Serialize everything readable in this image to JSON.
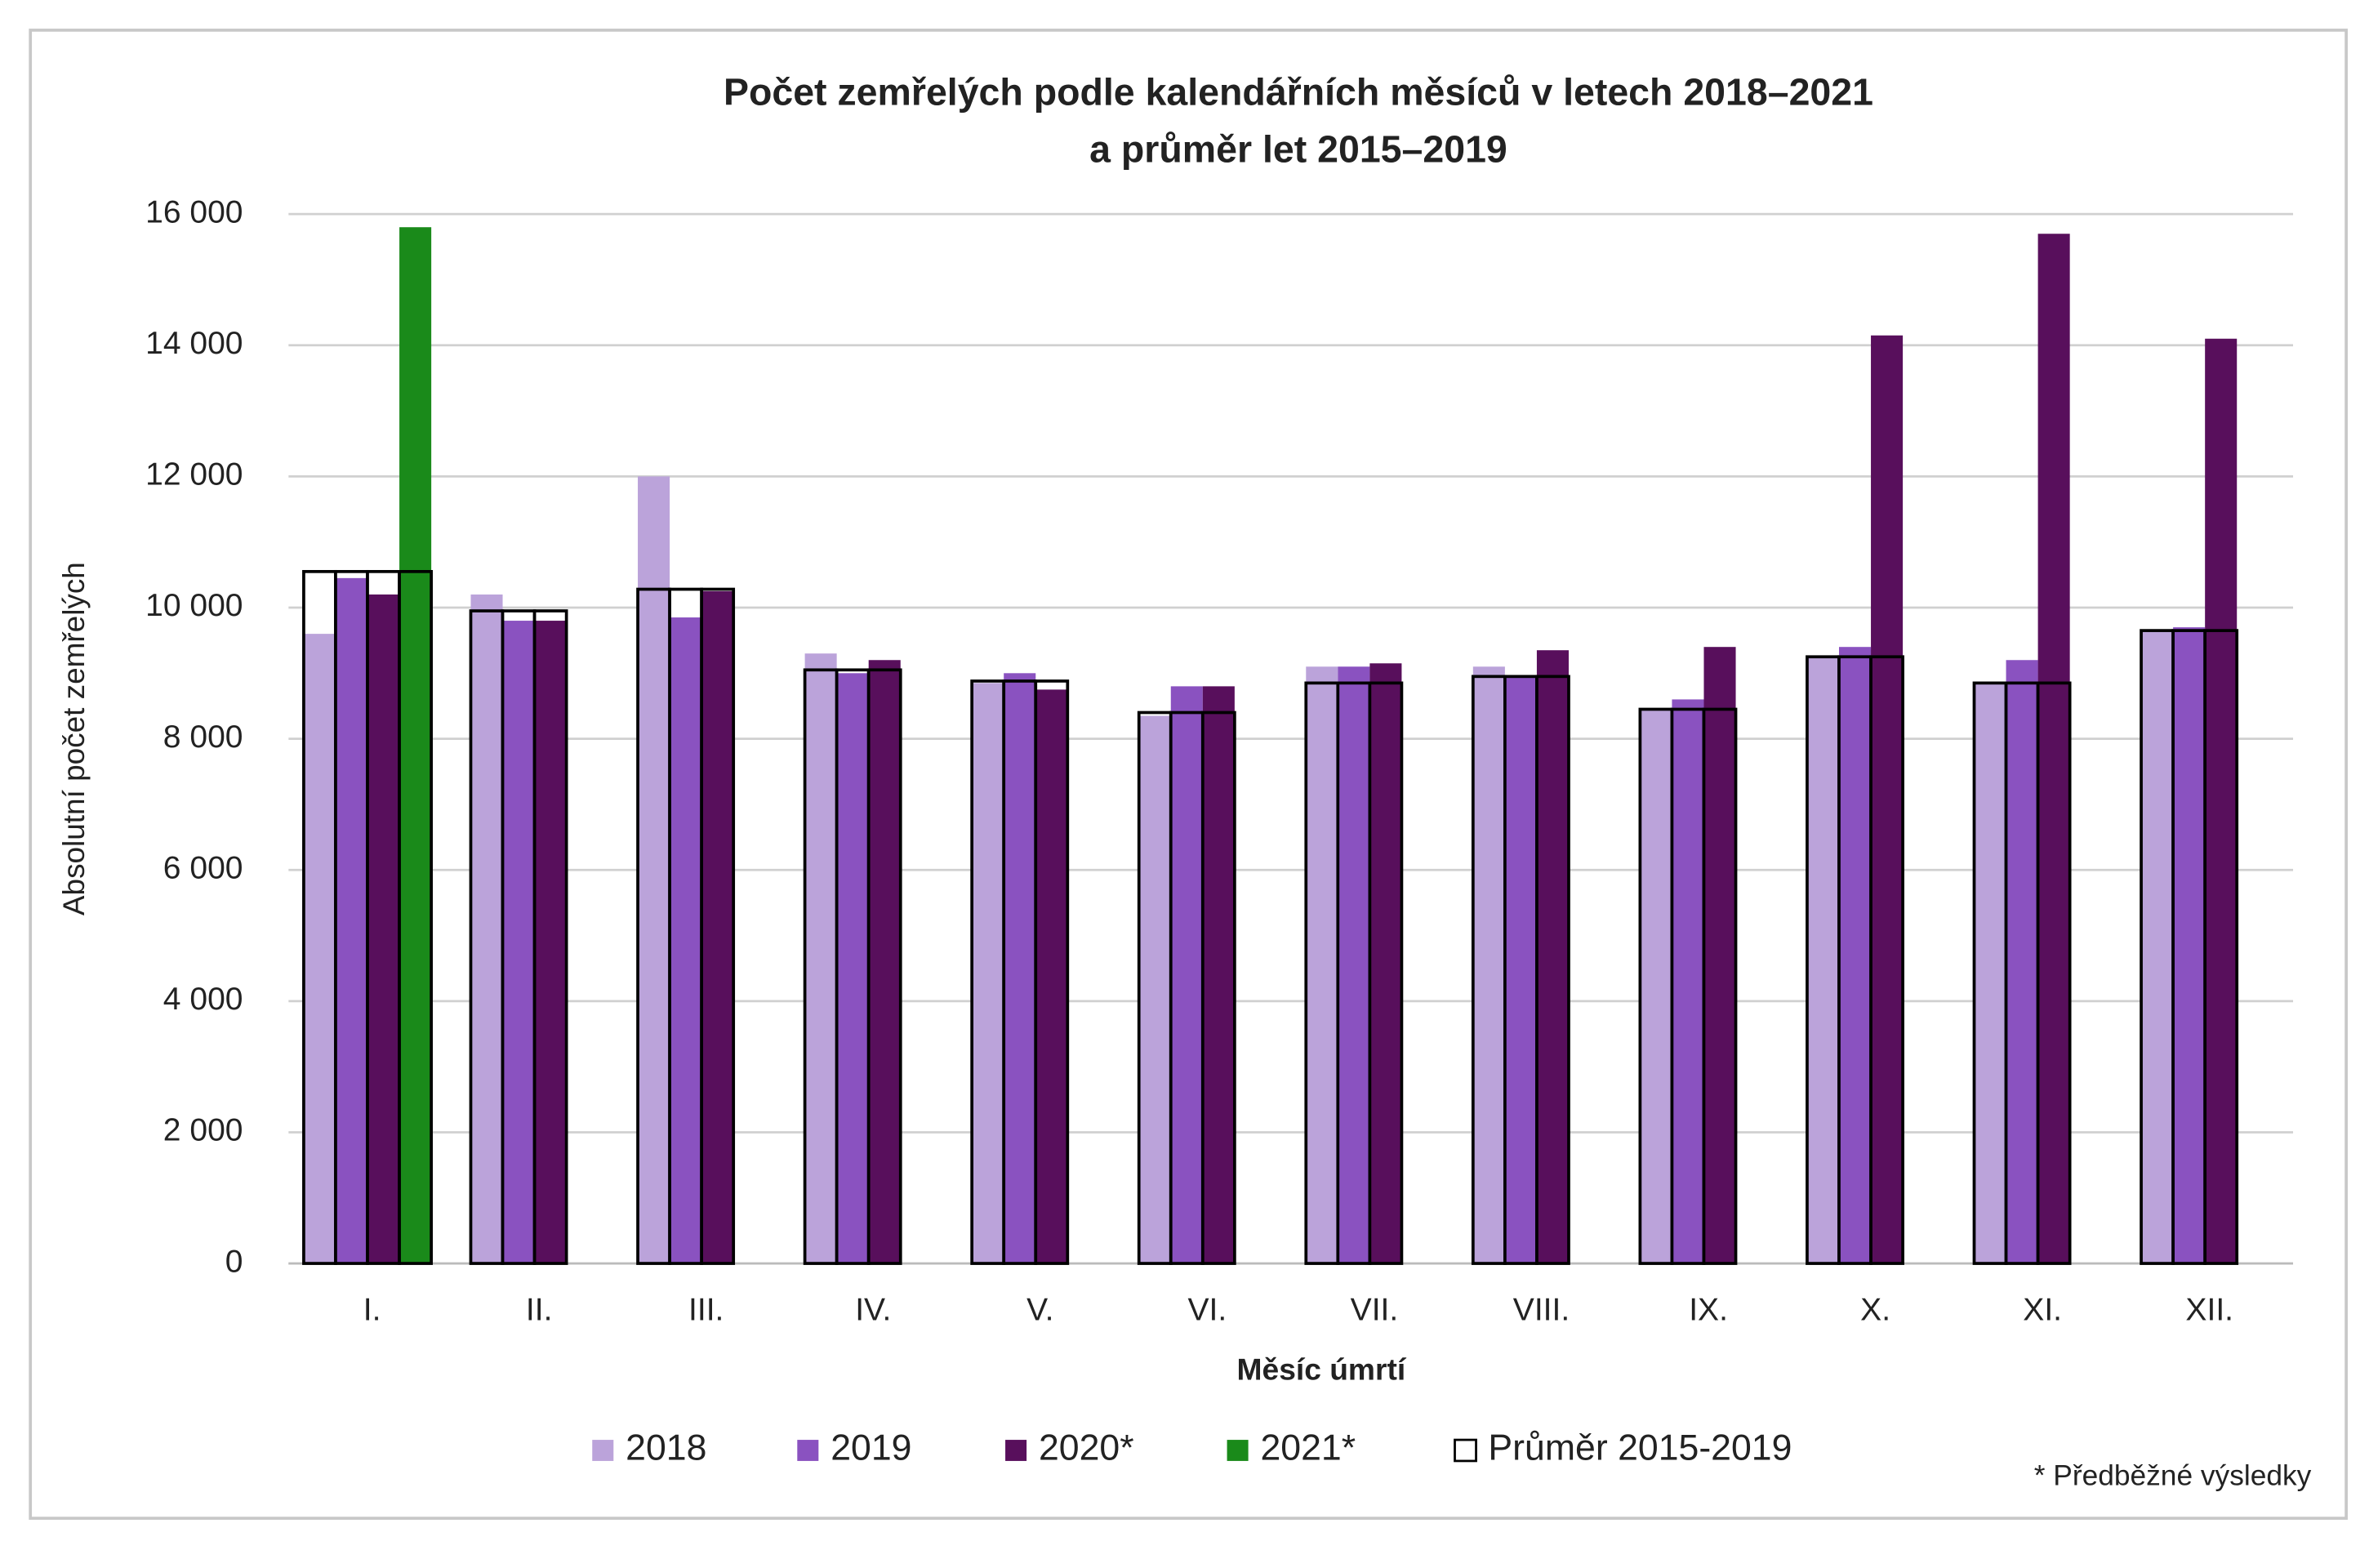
{
  "chart_data": {
    "type": "bar",
    "title": [
      "Počet zemřelých podle kalendářních měsíců v letech 2018–2021",
      "a průměr let 2015–2019"
    ],
    "xlabel": "Měsíc úmrtí",
    "ylabel": "Absolutní počet zemřelých",
    "note": "* Předběžné výsledky",
    "categories": [
      "I.",
      "II.",
      "III.",
      "IV.",
      "V.",
      "VI.",
      "VII.",
      "VIII.",
      "IX.",
      "X.",
      "XI.",
      "XII."
    ],
    "series": [
      {
        "name": "2018",
        "color": "#bba3da",
        "values": [
          9600,
          10200,
          12000,
          9300,
          8850,
          8350,
          9100,
          9100,
          8450,
          9250,
          8850,
          9650
        ]
      },
      {
        "name": "2019",
        "color": "#8a52c0",
        "values": [
          10450,
          9800,
          9850,
          9000,
          9000,
          8800,
          9100,
          8950,
          8600,
          9400,
          9200,
          9700
        ]
      },
      {
        "name": "2020*",
        "color": "#580f5c",
        "values": [
          10200,
          9800,
          10250,
          9200,
          8750,
          8800,
          9150,
          9350,
          9400,
          14150,
          15700,
          14100
        ]
      },
      {
        "name": "2021*",
        "color": "#1a8a1a",
        "values": [
          15800,
          null,
          null,
          null,
          null,
          null,
          null,
          null,
          null,
          null,
          null,
          null
        ]
      },
      {
        "name": "Průměr 2015-2019",
        "color": "#ffffff",
        "edgecolor": "#000000",
        "overlay": true,
        "values": [
          10550,
          9950,
          10280,
          9050,
          8880,
          8400,
          8850,
          8950,
          8450,
          9250,
          8850,
          9650
        ]
      }
    ],
    "ylim": [
      0,
      16000
    ],
    "yticks": [
      0,
      {
        "value": 2000,
        "label": "2 000"
      },
      {
        "value": 4000,
        "label": "4 000"
      },
      {
        "value": 6000,
        "label": "6 000"
      },
      {
        "value": 8000,
        "label": "8 000"
      },
      {
        "value": 10000,
        "label": "10 000"
      },
      {
        "value": 12000,
        "label": "12 000"
      },
      {
        "value": 14000,
        "label": "14 000"
      },
      {
        "value": 16000,
        "label": "16 000"
      }
    ],
    "grid": true,
    "legend": "bottom"
  }
}
